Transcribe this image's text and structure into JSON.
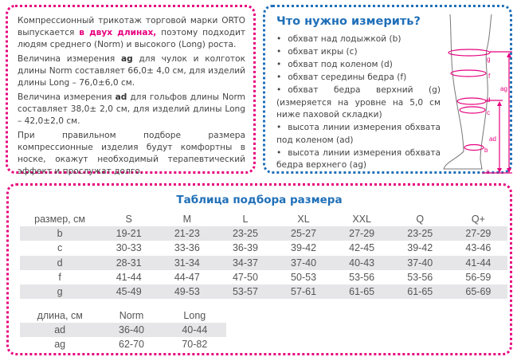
{
  "left_text": {
    "p1_a": "Компрессионный трикотаж торговой марки ORTO выпускается ",
    "p1_highlight": "в двух длинах,",
    "p1_b": " поэтому подходит людям среднего (Norm) и высокого (Long) роста.",
    "p2_a": "Величина измерения ",
    "p2_bold": "ag",
    "p2_b": " для чулок и колготок длины Norm составляет 66,0± 4,0 см, для изделий длины Long – 76,0±6,0 см.",
    "p3_a": "Величина измерения ",
    "p3_bold": "ad",
    "p3_b": " для гольфов длины Norm составляет 38,0± 2,0 см, для изделий длины Long – 42,0±2,0 см.",
    "p4": "При правильном подборе размера компрессионные изделия будут комфортны в носке, окажут необходимый терапевтический эффект и прослужат долго."
  },
  "measure": {
    "title": "Что нужно измерить?",
    "items": [
      "обхват над лодыжкой (b)",
      "обхват икры (c)",
      "обхват под коленом (d)",
      "обхват середины бедра (f)",
      "обхват бедра верхний (g) (измеряется на уровне на 5,0 см ниже паховой складки)",
      "высота линии измерения обхвата под коленом (ad)",
      "высота линии измерения обхвата бедра верхнего (ag)"
    ],
    "diagram_labels": {
      "g": "g",
      "f": "f",
      "d": "d",
      "c": "c",
      "b": "b",
      "a": "a",
      "ag": "ag",
      "ad": "ad"
    }
  },
  "size_table": {
    "title": "Таблица подбора размера",
    "headers": [
      "размер, см",
      "S",
      "M",
      "L",
      "XL",
      "XXL",
      "Q",
      "Q+"
    ],
    "rows": [
      [
        "b",
        "19-21",
        "21-23",
        "23-25",
        "25-27",
        "27-29",
        "23-25",
        "27-29"
      ],
      [
        "c",
        "30-33",
        "33-36",
        "36-39",
        "39-42",
        "42-45",
        "39-42",
        "43-46"
      ],
      [
        "d",
        "28-31",
        "31-34",
        "34-37",
        "37-40",
        "40-43",
        "37-40",
        "41-44"
      ],
      [
        "f",
        "41-44",
        "44-47",
        "47-50",
        "50-53",
        "53-56",
        "53-56",
        "56-59"
      ],
      [
        "g",
        "45-49",
        "49-53",
        "53-57",
        "57-61",
        "61-65",
        "61-65",
        "65-69"
      ]
    ]
  },
  "length_table": {
    "headers": [
      "длина, см",
      "Norm",
      "Long"
    ],
    "rows": [
      [
        "ad",
        "36-40",
        "40-44"
      ],
      [
        "ag",
        "62-70",
        "70-82"
      ]
    ]
  },
  "colors": {
    "pink": "#e6007e",
    "blue": "#1f6fb8",
    "row_gray": "#e6e6e8"
  }
}
